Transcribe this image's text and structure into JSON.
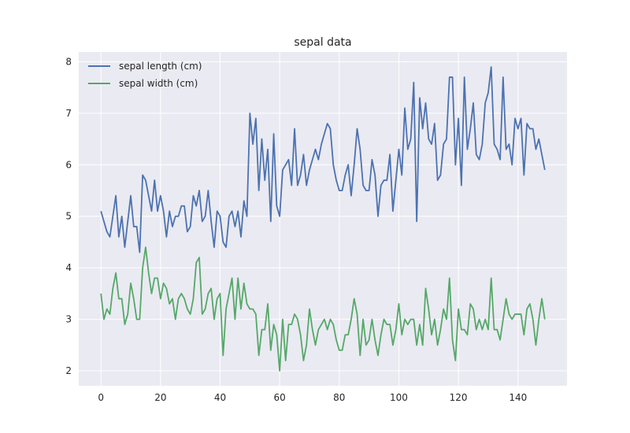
{
  "chart_data": {
    "type": "line",
    "title": "sepal data",
    "xlabel": "",
    "ylabel": "",
    "xlim": [
      -7.45,
      156.45
    ],
    "ylim": [
      1.71,
      8.19
    ],
    "xticks": [
      0,
      20,
      40,
      60,
      80,
      100,
      120,
      140
    ],
    "yticks": [
      2,
      3,
      4,
      5,
      6,
      7,
      8
    ],
    "grid": true,
    "legend_position": "top-left",
    "background_color": "#eaeaf2",
    "grid_color": "#ffffff",
    "series": [
      {
        "name": "sepal length (cm)",
        "color": "#4c72b0",
        "values": [
          5.1,
          4.9,
          4.7,
          4.6,
          5.0,
          5.4,
          4.6,
          5.0,
          4.4,
          4.9,
          5.4,
          4.8,
          4.8,
          4.3,
          5.8,
          5.7,
          5.4,
          5.1,
          5.7,
          5.1,
          5.4,
          5.1,
          4.6,
          5.1,
          4.8,
          5.0,
          5.0,
          5.2,
          5.2,
          4.7,
          4.8,
          5.4,
          5.2,
          5.5,
          4.9,
          5.0,
          5.5,
          4.9,
          4.4,
          5.1,
          5.0,
          4.5,
          4.4,
          5.0,
          5.1,
          4.8,
          5.1,
          4.6,
          5.3,
          5.0,
          7.0,
          6.4,
          6.9,
          5.5,
          6.5,
          5.7,
          6.3,
          4.9,
          6.6,
          5.2,
          5.0,
          5.9,
          6.0,
          6.1,
          5.6,
          6.7,
          5.6,
          5.8,
          6.2,
          5.6,
          5.9,
          6.1,
          6.3,
          6.1,
          6.4,
          6.6,
          6.8,
          6.7,
          6.0,
          5.7,
          5.5,
          5.5,
          5.8,
          6.0,
          5.4,
          6.0,
          6.7,
          6.3,
          5.6,
          5.5,
          5.5,
          6.1,
          5.8,
          5.0,
          5.6,
          5.7,
          5.7,
          6.2,
          5.1,
          5.7,
          6.3,
          5.8,
          7.1,
          6.3,
          6.5,
          7.6,
          4.9,
          7.3,
          6.7,
          7.2,
          6.5,
          6.4,
          6.8,
          5.7,
          5.8,
          6.4,
          6.5,
          7.7,
          7.7,
          6.0,
          6.9,
          5.6,
          7.7,
          6.3,
          6.7,
          7.2,
          6.2,
          6.1,
          6.4,
          7.2,
          7.4,
          7.9,
          6.4,
          6.3,
          6.1,
          7.7,
          6.3,
          6.4,
          6.0,
          6.9,
          6.7,
          6.9,
          5.8,
          6.8,
          6.7,
          6.7,
          6.3,
          6.5,
          6.2,
          5.9
        ]
      },
      {
        "name": "sepal width (cm)",
        "color": "#55a868",
        "values": [
          3.5,
          3.0,
          3.2,
          3.1,
          3.6,
          3.9,
          3.4,
          3.4,
          2.9,
          3.1,
          3.7,
          3.4,
          3.0,
          3.0,
          4.0,
          4.4,
          3.9,
          3.5,
          3.8,
          3.8,
          3.4,
          3.7,
          3.6,
          3.3,
          3.4,
          3.0,
          3.4,
          3.5,
          3.4,
          3.2,
          3.1,
          3.4,
          4.1,
          4.2,
          3.1,
          3.2,
          3.5,
          3.6,
          3.0,
          3.4,
          3.5,
          2.3,
          3.2,
          3.5,
          3.8,
          3.0,
          3.8,
          3.2,
          3.7,
          3.3,
          3.2,
          3.2,
          3.1,
          2.3,
          2.8,
          2.8,
          3.3,
          2.4,
          2.9,
          2.7,
          2.0,
          3.0,
          2.2,
          2.9,
          2.9,
          3.1,
          3.0,
          2.7,
          2.2,
          2.5,
          3.2,
          2.8,
          2.5,
          2.8,
          2.9,
          3.0,
          2.8,
          3.0,
          2.9,
          2.6,
          2.4,
          2.4,
          2.7,
          2.7,
          3.0,
          3.4,
          3.1,
          2.3,
          3.0,
          2.5,
          2.6,
          3.0,
          2.6,
          2.3,
          2.7,
          3.0,
          2.9,
          2.9,
          2.5,
          2.8,
          3.3,
          2.7,
          3.0,
          2.9,
          3.0,
          3.0,
          2.5,
          2.9,
          2.5,
          3.6,
          3.2,
          2.7,
          3.0,
          2.5,
          2.8,
          3.2,
          3.0,
          3.8,
          2.6,
          2.2,
          3.2,
          2.8,
          2.8,
          2.7,
          3.3,
          3.2,
          2.8,
          3.0,
          2.8,
          3.0,
          2.8,
          3.8,
          2.8,
          2.8,
          2.6,
          3.0,
          3.4,
          3.1,
          3.0,
          3.1,
          3.1,
          3.1,
          2.7,
          3.2,
          3.3,
          3.0,
          2.5,
          3.0,
          3.4,
          3.0
        ]
      }
    ]
  }
}
